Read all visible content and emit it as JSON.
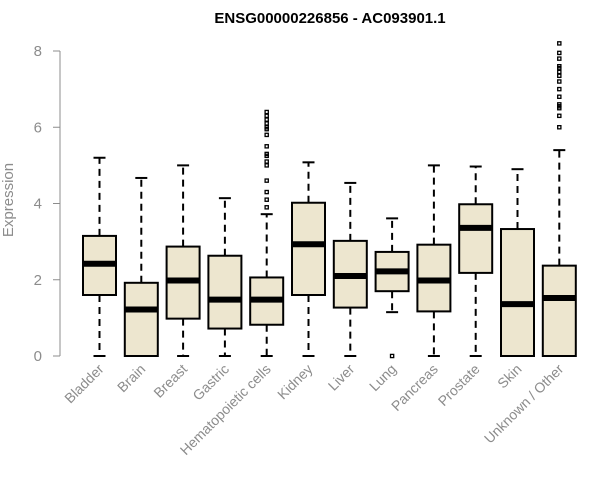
{
  "chart_data": {
    "type": "boxplot",
    "title": "ENSG00000226856 - AC093901.1",
    "ylabel": "Expression",
    "ylim": [
      0,
      8
    ],
    "yticks": [
      0,
      2,
      4,
      6,
      8
    ],
    "grid": false,
    "box_color": "#ede6cf",
    "categories": [
      "Bladder",
      "Brain",
      "Breast",
      "Gastric",
      "Hematopoietic cells",
      "Kidney",
      "Liver",
      "Lung",
      "Pancreas",
      "Prostate",
      "Skin",
      "Unknown / Other"
    ],
    "boxes": [
      {
        "min": 0,
        "q1": 1.6,
        "median": 2.42,
        "q3": 3.15,
        "max": 5.2,
        "outliers": []
      },
      {
        "min": 0,
        "q1": 0.0,
        "median": 1.22,
        "q3": 1.92,
        "max": 4.67,
        "outliers": []
      },
      {
        "min": 0,
        "q1": 0.98,
        "median": 1.98,
        "q3": 2.87,
        "max": 5.0,
        "outliers": []
      },
      {
        "min": 0,
        "q1": 0.72,
        "median": 1.48,
        "q3": 2.63,
        "max": 4.14,
        "outliers": []
      },
      {
        "min": 0,
        "q1": 0.82,
        "median": 1.48,
        "q3": 2.06,
        "max": 3.72,
        "outliers": [
          3.9,
          4.1,
          4.3,
          4.6,
          5.0,
          5.1,
          5.25,
          5.3,
          5.5,
          5.8,
          5.95,
          6.0,
          6.1,
          6.2,
          6.3,
          6.4
        ]
      },
      {
        "min": 0,
        "q1": 1.6,
        "median": 2.93,
        "q3": 4.02,
        "max": 5.08,
        "outliers": []
      },
      {
        "min": 0,
        "q1": 1.27,
        "median": 2.1,
        "q3": 3.02,
        "max": 4.54,
        "outliers": []
      },
      {
        "min": 1.15,
        "q1": 1.7,
        "median": 2.22,
        "q3": 2.73,
        "max": 3.61,
        "outliers": [
          0.0
        ]
      },
      {
        "min": 0,
        "q1": 1.17,
        "median": 1.98,
        "q3": 2.92,
        "max": 5.0,
        "outliers": []
      },
      {
        "min": 0,
        "q1": 2.18,
        "median": 3.36,
        "q3": 3.98,
        "max": 4.97,
        "outliers": []
      },
      {
        "min": 0,
        "q1": 0.0,
        "median": 1.36,
        "q3": 3.33,
        "max": 4.9,
        "outliers": []
      },
      {
        "min": 0,
        "q1": 0.0,
        "median": 1.52,
        "q3": 2.37,
        "max": 5.4,
        "outliers": [
          6.0,
          6.3,
          6.5,
          6.55,
          6.6,
          6.8,
          7.0,
          7.2,
          7.35,
          7.45,
          7.55,
          7.6,
          7.8,
          7.95,
          8.2
        ]
      }
    ]
  }
}
